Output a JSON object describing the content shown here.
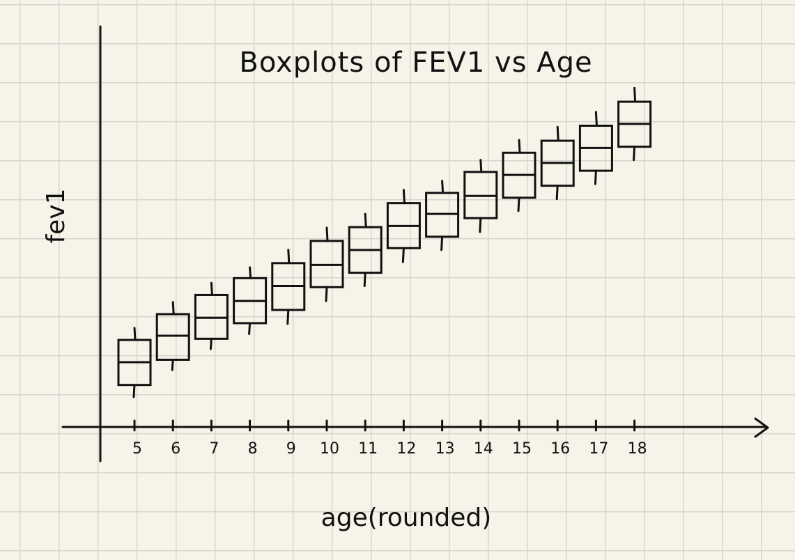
{
  "chart_data": {
    "type": "boxplot",
    "title": "Boxplots of FEV1 vs Age",
    "xlabel": "age(rounded)",
    "ylabel": "fev1",
    "categories": [
      "5",
      "6",
      "7",
      "8",
      "9",
      "10",
      "11",
      "12",
      "13",
      "14",
      "15",
      "16",
      "17",
      "18"
    ],
    "boxes": [
      {
        "x": "5",
        "whisker_low": 0.5,
        "q1": 0.7,
        "median": 1.08,
        "q3": 1.45,
        "whisker_high": 1.65
      },
      {
        "x": "6",
        "whisker_low": 0.95,
        "q1": 1.12,
        "median": 1.52,
        "q3": 1.88,
        "whisker_high": 2.08
      },
      {
        "x": "7",
        "whisker_low": 1.3,
        "q1": 1.47,
        "median": 1.82,
        "q3": 2.2,
        "whisker_high": 2.4
      },
      {
        "x": "8",
        "whisker_low": 1.55,
        "q1": 1.73,
        "median": 2.1,
        "q3": 2.48,
        "whisker_high": 2.66
      },
      {
        "x": "9",
        "whisker_low": 1.72,
        "q1": 1.95,
        "median": 2.35,
        "q3": 2.73,
        "whisker_high": 2.95
      },
      {
        "x": "10",
        "whisker_low": 2.1,
        "q1": 2.33,
        "median": 2.7,
        "q3": 3.1,
        "whisker_high": 3.32
      },
      {
        "x": "11",
        "whisker_low": 2.35,
        "q1": 2.57,
        "median": 2.95,
        "q3": 3.33,
        "whisker_high": 3.55
      },
      {
        "x": "12",
        "whisker_low": 2.75,
        "q1": 2.98,
        "median": 3.35,
        "q3": 3.73,
        "whisker_high": 3.95
      },
      {
        "x": "13",
        "whisker_low": 2.95,
        "q1": 3.17,
        "median": 3.55,
        "q3": 3.9,
        "whisker_high": 4.1
      },
      {
        "x": "14",
        "whisker_low": 3.25,
        "q1": 3.48,
        "median": 3.85,
        "q3": 4.25,
        "whisker_high": 4.45
      },
      {
        "x": "15",
        "whisker_low": 3.6,
        "q1": 3.82,
        "median": 4.2,
        "q3": 4.57,
        "whisker_high": 4.78
      },
      {
        "x": "16",
        "whisker_low": 3.8,
        "q1": 4.02,
        "median": 4.4,
        "q3": 4.77,
        "whisker_high": 5.0
      },
      {
        "x": "17",
        "whisker_low": 4.05,
        "q1": 4.27,
        "median": 4.65,
        "q3": 5.02,
        "whisker_high": 5.25
      },
      {
        "x": "18",
        "whisker_low": 4.45,
        "q1": 4.67,
        "median": 5.05,
        "q3": 5.42,
        "whisker_high": 5.65
      }
    ],
    "ylim": [
      0,
      6.5
    ],
    "grid": true,
    "colors": {
      "ink": "#111111",
      "paper": "#f6f4e8",
      "grid": "#d6d6d0"
    }
  }
}
